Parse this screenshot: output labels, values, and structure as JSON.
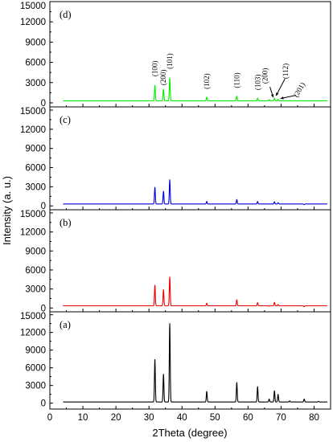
{
  "chart_data": {
    "type": "line",
    "xlabel": "2Theta (degree)",
    "ylabel": "Intensity (a. u.)",
    "xlim": [
      0,
      85
    ],
    "x_ticks": [
      0,
      10,
      20,
      30,
      40,
      50,
      60,
      70,
      80
    ],
    "grid": false,
    "legend": "none",
    "panels": [
      {
        "label": "(d)",
        "color": "#00ee00",
        "ylim": [
          -600,
          15000
        ],
        "y_ticks": [
          0,
          3000,
          6000,
          9000,
          12000,
          15000
        ],
        "baseline": 300,
        "peaks": [
          {
            "x": 31.8,
            "y": 2600
          },
          {
            "x": 34.4,
            "y": 2000
          },
          {
            "x": 36.3,
            "y": 3700
          },
          {
            "x": 47.5,
            "y": 850
          },
          {
            "x": 56.6,
            "y": 1000
          },
          {
            "x": 62.9,
            "y": 700
          },
          {
            "x": 66.4,
            "y": 450
          },
          {
            "x": 68.0,
            "y": 700
          },
          {
            "x": 69.1,
            "y": 520
          }
        ],
        "peak_labels": [
          {
            "text": "(100)",
            "x": 31.8
          },
          {
            "text": "(200)",
            "x": 34.4
          },
          {
            "text": "(101)",
            "x": 36.3
          },
          {
            "text": "(102)",
            "x": 47.5
          },
          {
            "text": "(110)",
            "x": 56.6
          },
          {
            "text": "(103)",
            "x": 62.9
          },
          {
            "text": "(200)",
            "x": 66.4
          },
          {
            "text": "(112)",
            "x": 68.0
          },
          {
            "text": "(201)",
            "x": 69.1
          }
        ]
      },
      {
        "label": "(c)",
        "color": "#0000dd",
        "ylim": [
          -600,
          15500
        ],
        "y_ticks": [
          0,
          3000,
          6000,
          9000,
          12000,
          15000
        ],
        "baseline": 300,
        "peaks": [
          {
            "x": 31.8,
            "y": 2900
          },
          {
            "x": 34.4,
            "y": 2300
          },
          {
            "x": 36.3,
            "y": 4100
          },
          {
            "x": 47.5,
            "y": 700
          },
          {
            "x": 56.6,
            "y": 1000
          },
          {
            "x": 62.9,
            "y": 700
          },
          {
            "x": 66.4,
            "y": 300
          },
          {
            "x": 68.0,
            "y": 650
          },
          {
            "x": 69.1,
            "y": 500
          },
          {
            "x": 77.0,
            "y": 200
          }
        ]
      },
      {
        "label": "(b)",
        "color": "#ee0000",
        "ylim": [
          -600,
          15500
        ],
        "y_ticks": [
          0,
          3000,
          6000,
          9000,
          12000,
          15000
        ],
        "baseline": 350,
        "peaks": [
          {
            "x": 31.8,
            "y": 3600
          },
          {
            "x": 34.4,
            "y": 2900
          },
          {
            "x": 36.3,
            "y": 4900
          },
          {
            "x": 47.5,
            "y": 750
          },
          {
            "x": 56.6,
            "y": 1300
          },
          {
            "x": 62.9,
            "y": 850
          },
          {
            "x": 66.4,
            "y": 300
          },
          {
            "x": 68.0,
            "y": 900
          },
          {
            "x": 69.1,
            "y": 550
          },
          {
            "x": 77.0,
            "y": 200
          }
        ]
      },
      {
        "label": "(a)",
        "color": "#000000",
        "ylim": [
          -1000,
          15500
        ],
        "y_ticks": [
          0,
          3000,
          6000,
          9000,
          12000,
          15000
        ],
        "baseline": 200,
        "peaks": [
          {
            "x": 31.8,
            "y": 7400
          },
          {
            "x": 34.4,
            "y": 4900
          },
          {
            "x": 36.3,
            "y": 13500
          },
          {
            "x": 47.5,
            "y": 2000
          },
          {
            "x": 56.6,
            "y": 3500
          },
          {
            "x": 62.9,
            "y": 2800
          },
          {
            "x": 66.4,
            "y": 700
          },
          {
            "x": 68.0,
            "y": 2100
          },
          {
            "x": 69.1,
            "y": 1500
          },
          {
            "x": 72.6,
            "y": 400
          },
          {
            "x": 77.0,
            "y": 700
          },
          {
            "x": 81.4,
            "y": 300
          }
        ]
      }
    ]
  }
}
